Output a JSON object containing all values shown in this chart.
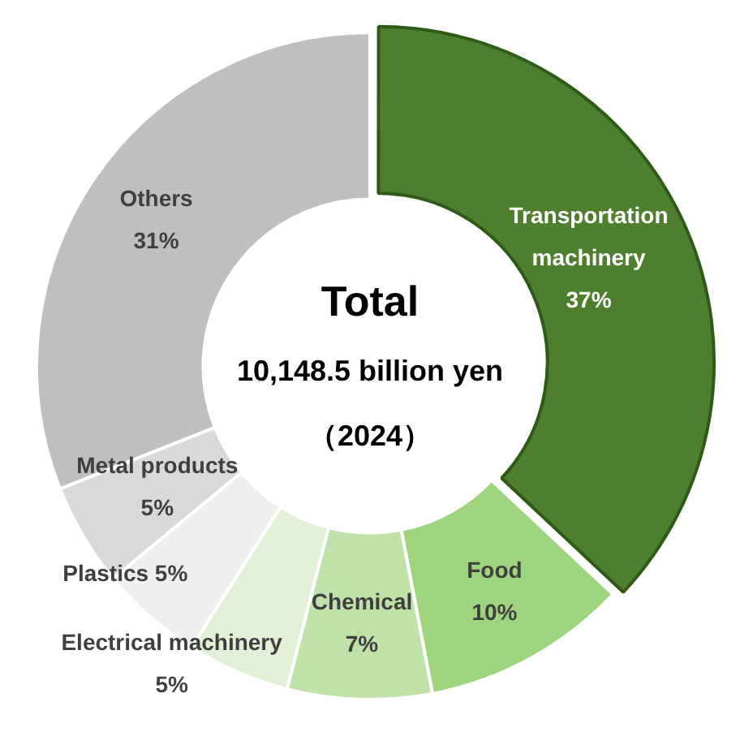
{
  "chart_data": {
    "type": "donut",
    "title": "Total",
    "subtitle": "10,148.5 billion yen",
    "annotations": [
      "（2024）"
    ],
    "categories": [
      "Transportation machinery",
      "Food",
      "Chemical",
      "Electrical machinery",
      "Plastics",
      "Metal products",
      "Others"
    ],
    "values": [
      37,
      10,
      7,
      5,
      5,
      5,
      31
    ],
    "value_labels": [
      "37%",
      "10%",
      "7%",
      "5%",
      "5%",
      "5%",
      "31%"
    ],
    "colors": [
      "#4e7f2e",
      "#9fd47f",
      "#bfe2a8",
      "#e2f1d6",
      "#efefef",
      "#d9d9d9",
      "#bfbfbf"
    ],
    "legend": false
  }
}
